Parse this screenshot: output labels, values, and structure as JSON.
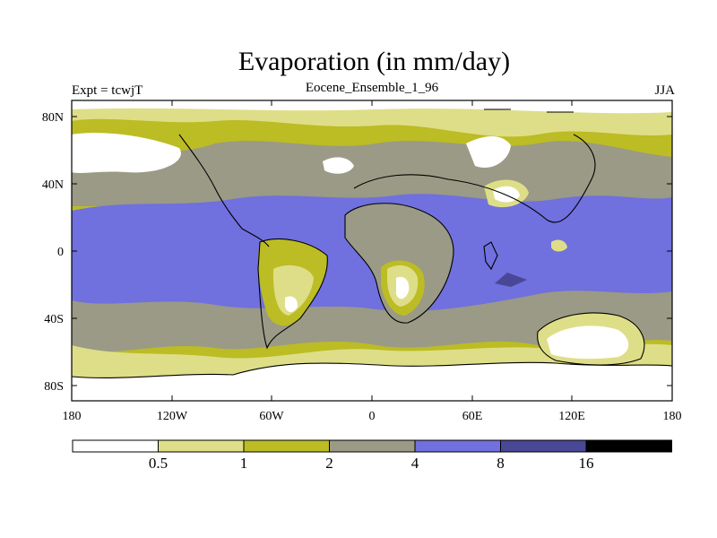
{
  "title": "Evaporation (in mm/day)",
  "subtitle": "Eocene_Ensemble_1_96",
  "left_label": "Expt = tcwjT",
  "right_label": "JJA",
  "lat_ticks": [
    "80N",
    "40N",
    "0",
    "40S",
    "80S"
  ],
  "lon_ticks": [
    "180",
    "120W",
    "60W",
    "0",
    "60E",
    "120E",
    "180"
  ],
  "colorbar": {
    "colors": [
      "#ffffff",
      "#dede88",
      "#bcbc24",
      "#9a9a86",
      "#7070de",
      "#484896",
      "#000000"
    ],
    "labels": [
      "0.5",
      "1",
      "2",
      "4",
      "8",
      "16"
    ]
  }
}
